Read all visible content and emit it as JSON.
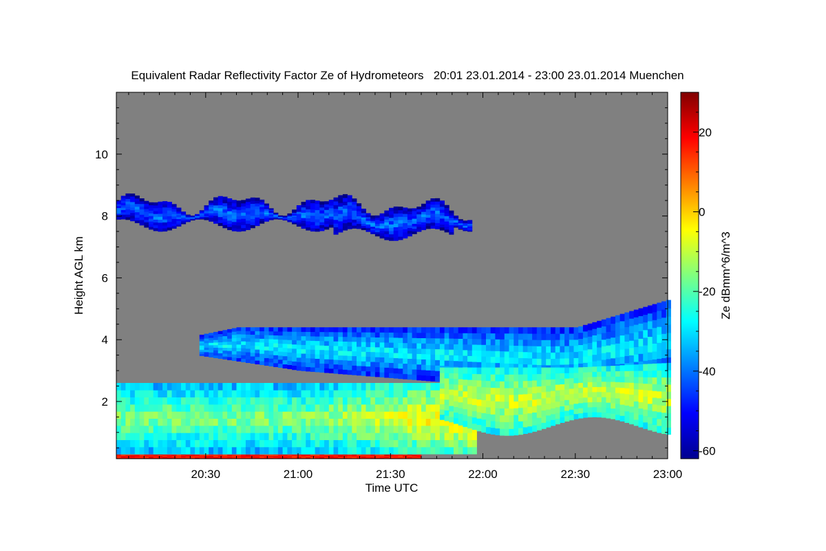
{
  "chart_data": {
    "type": "heatmap",
    "title": "Equivalent Radar Reflectivity Factor Ze of Hydrometeors   20:01 23.01.2014 - 23:00 23.01.2014 Muenchen",
    "xlabel": "Time UTC",
    "ylabel": "Height AGL km",
    "x_ticks": [
      "20:30",
      "21:00",
      "21:30",
      "22:00",
      "22:30",
      "23:00"
    ],
    "x_tick_minutes": [
      30,
      60,
      90,
      120,
      150,
      180
    ],
    "xlim_minutes": [
      1,
      180
    ],
    "y_ticks": [
      2,
      4,
      6,
      8,
      10
    ],
    "ylim": [
      0.15,
      12.0
    ],
    "background_color": "#808080",
    "colorbar": {
      "label": "Ze dBmm^6/m^3",
      "range": [
        -62,
        30
      ],
      "ticks": [
        20,
        0,
        -20,
        -40,
        -60
      ],
      "colormap": "jet"
    },
    "regions": [
      {
        "name": "cirrus-layer",
        "x_start": 1,
        "x_end": 116,
        "top": 8.4,
        "bottom": 7.7,
        "ze_core": -40
      },
      {
        "name": "mid-layer",
        "x_start": 28,
        "x_end": 180,
        "top": 4.4,
        "bottom": 3.0,
        "ze_core": -28
      },
      {
        "name": "low-layer-west",
        "x_start": 1,
        "x_end": 118,
        "top": 2.6,
        "bottom": 0.3,
        "ze_core": -15
      },
      {
        "name": "low-layer-east",
        "x_start": 106,
        "x_end": 180,
        "top": 3.1,
        "bottom": 1.2,
        "ze_core": -8
      },
      {
        "name": "surface-precipitation",
        "x_start": 1,
        "x_end": 100,
        "top": 0.28,
        "bottom": 0.15,
        "ze_core": 15
      }
    ]
  }
}
